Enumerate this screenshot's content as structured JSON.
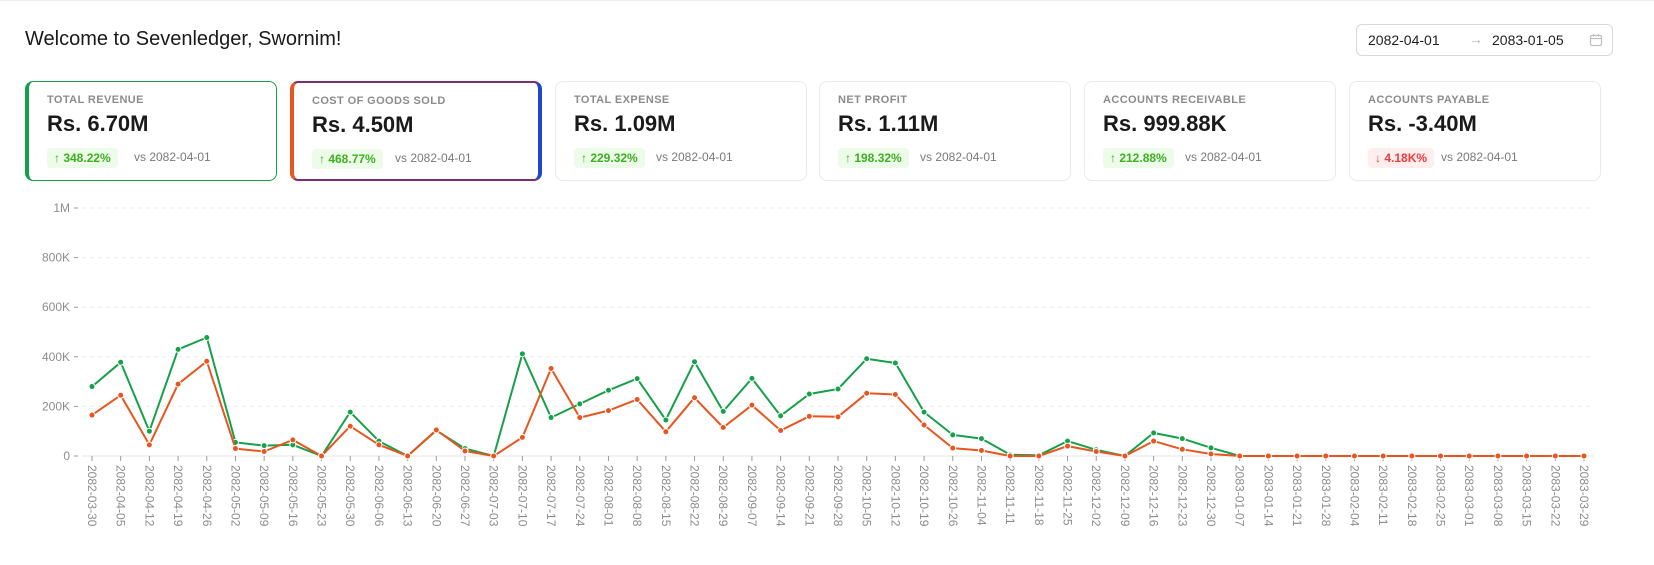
{
  "header": {
    "title": "Welcome to Sevenledger, Swornim!"
  },
  "date_range": {
    "start": "2082-04-01",
    "separator": "→",
    "end": "2083-01-05",
    "icon": "calendar-icon"
  },
  "cards": [
    {
      "label": "TOTAL REVENUE",
      "value": "Rs. 6.70M",
      "change": "↑ 348.22%",
      "direction": "up",
      "compare": "vs 2082-04-01"
    },
    {
      "label": "COST OF GOODS SOLD",
      "value": "Rs. 4.50M",
      "change": "↑ 468.77%",
      "direction": "up",
      "compare": "vs 2082-04-01"
    },
    {
      "label": "TOTAL EXPENSE",
      "value": "Rs. 1.09M",
      "change": "↑ 229.32%",
      "direction": "up",
      "compare": "vs 2082-04-01"
    },
    {
      "label": "NET PROFIT",
      "value": "Rs. 1.11M",
      "change": "↑ 198.32%",
      "direction": "up",
      "compare": "vs 2082-04-01"
    },
    {
      "label": "ACCOUNTS RECEIVABLE",
      "value": "Rs. 999.88K",
      "change": "↑ 212.88%",
      "direction": "up",
      "compare": "vs 2082-04-01"
    },
    {
      "label": "ACCOUNTS PAYABLE",
      "value": "Rs. -3.40M",
      "change": "↓ 4.18K%",
      "direction": "down",
      "compare": "vs 2082-04-01"
    }
  ],
  "colors": {
    "revenue": "#15a049",
    "cogs": "#e8551f",
    "grid": "#ececec",
    "axis_text": "#8c8c8c"
  },
  "chart_data": {
    "type": "line",
    "title": "",
    "xlabel": "",
    "ylabel": "",
    "ylim": [
      0,
      1000000
    ],
    "yticks": [
      0,
      200000,
      400000,
      600000,
      800000,
      1000000
    ],
    "ytick_labels": [
      "0",
      "200K",
      "400K",
      "600K",
      "800K",
      "1M"
    ],
    "grid": true,
    "x": [
      "2082-03-30",
      "2082-04-05",
      "2082-04-12",
      "2082-04-19",
      "2082-04-26",
      "2082-05-02",
      "2082-05-09",
      "2082-05-16",
      "2082-05-23",
      "2082-05-30",
      "2082-06-06",
      "2082-06-13",
      "2082-06-20",
      "2082-06-27",
      "2082-07-03",
      "2082-07-10",
      "2082-07-17",
      "2082-07-24",
      "2082-08-01",
      "2082-08-08",
      "2082-08-15",
      "2082-08-22",
      "2082-08-29",
      "2082-09-07",
      "2082-09-14",
      "2082-09-21",
      "2082-09-28",
      "2082-10-05",
      "2082-10-12",
      "2082-10-19",
      "2082-10-26",
      "2082-11-04",
      "2082-11-11",
      "2082-11-18",
      "2082-11-25",
      "2082-12-02",
      "2082-12-09",
      "2082-12-16",
      "2082-12-23",
      "2082-12-30",
      "2083-01-07",
      "2083-01-14",
      "2083-01-21",
      "2083-01-28",
      "2083-02-04",
      "2083-02-11",
      "2083-02-18",
      "2083-02-25",
      "2083-03-01",
      "2083-03-08",
      "2083-03-15",
      "2083-03-22",
      "2083-03-29"
    ],
    "series": [
      {
        "name": "Total Revenue",
        "color": "#15a049",
        "values": [
          280000,
          378000,
          100000,
          430000,
          478000,
          55000,
          42000,
          45000,
          0,
          177000,
          60000,
          0,
          103000,
          30000,
          0,
          412000,
          155000,
          210000,
          265000,
          312000,
          145000,
          380000,
          180000,
          313000,
          162000,
          250000,
          270000,
          392000,
          375000,
          177000,
          85000,
          70000,
          5000,
          3000,
          60000,
          25000,
          0,
          93000,
          70000,
          33000,
          0,
          0,
          0,
          0,
          0,
          0,
          0,
          0,
          0,
          0,
          0,
          0,
          0
        ]
      },
      {
        "name": "Cost of Goods Sold",
        "color": "#e8551f",
        "values": [
          165000,
          245000,
          45000,
          290000,
          382000,
          30000,
          18000,
          65000,
          0,
          120000,
          45000,
          0,
          105000,
          20000,
          0,
          75000,
          353000,
          155000,
          183000,
          228000,
          98000,
          235000,
          115000,
          205000,
          103000,
          160000,
          158000,
          253000,
          248000,
          125000,
          32000,
          22000,
          0,
          0,
          40000,
          18000,
          0,
          60000,
          27000,
          8000,
          0,
          0,
          0,
          0,
          0,
          0,
          0,
          0,
          0,
          0,
          0,
          0,
          0
        ]
      }
    ]
  }
}
